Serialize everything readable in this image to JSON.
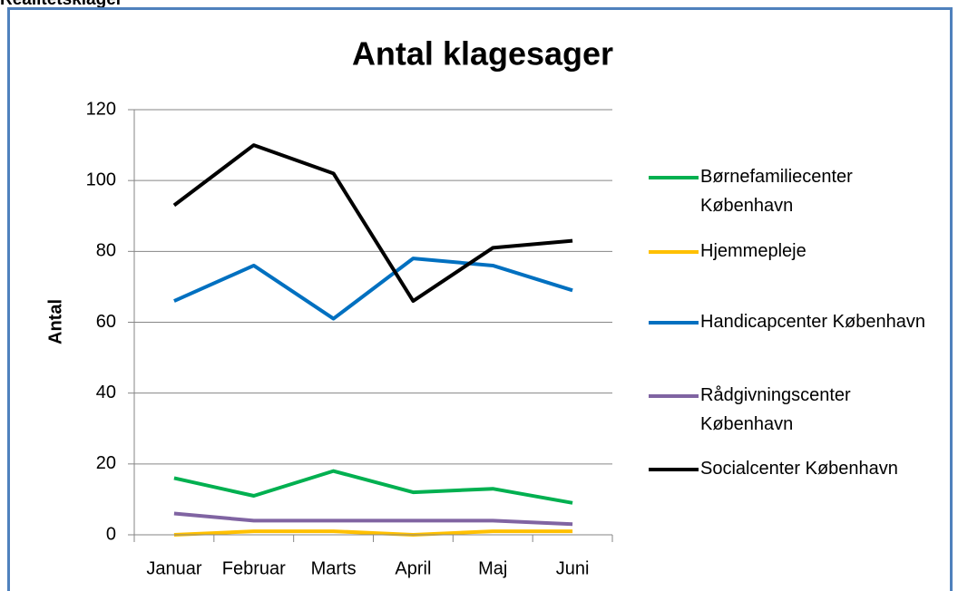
{
  "heading": "Realitetsklager",
  "chart_data": {
    "type": "line",
    "title": "Antal klagesager",
    "y_label": "Antal",
    "categories": [
      "Januar",
      "Februar",
      "Marts",
      "April",
      "Maj",
      "Juni"
    ],
    "series": [
      {
        "name": "Børnefamiliecenter København",
        "color": "#00b050",
        "values": [
          16,
          11,
          18,
          12,
          13,
          9
        ]
      },
      {
        "name": "Hjemmepleje",
        "color": "#ffc000",
        "values": [
          0,
          1,
          1,
          0,
          1,
          1
        ]
      },
      {
        "name": "Handicapcenter København",
        "color": "#0070c0",
        "values": [
          66,
          76,
          61,
          78,
          76,
          69
        ]
      },
      {
        "name": "Rådgivningscenter København",
        "color": "#8064a2",
        "values": [
          6,
          4,
          4,
          4,
          4,
          3
        ]
      },
      {
        "name": "Socialcenter København",
        "color": "#000000",
        "values": [
          93,
          110,
          102,
          66,
          81,
          83
        ]
      }
    ],
    "ylim": [
      0,
      120
    ],
    "yticks": [
      0,
      20,
      40,
      60,
      80,
      100,
      120
    ],
    "grid": true,
    "legend": "right"
  }
}
